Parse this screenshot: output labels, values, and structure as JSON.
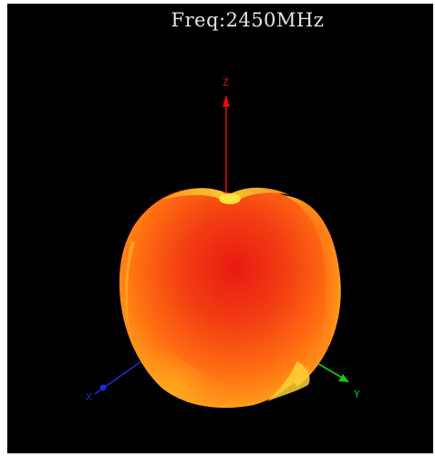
{
  "header": {
    "frequency_label": "Freq:2450MHz"
  },
  "axes": {
    "z": {
      "label": "Z",
      "color": "#e01010"
    },
    "x": {
      "label": "X",
      "color": "#1a2ad8"
    },
    "y": {
      "label": "Y",
      "color": "#18c818"
    }
  },
  "pattern": {
    "colors": {
      "max": "#e41a10",
      "mid": "#ff6a10",
      "low": "#ffc020",
      "min": "#ffe840"
    }
  }
}
